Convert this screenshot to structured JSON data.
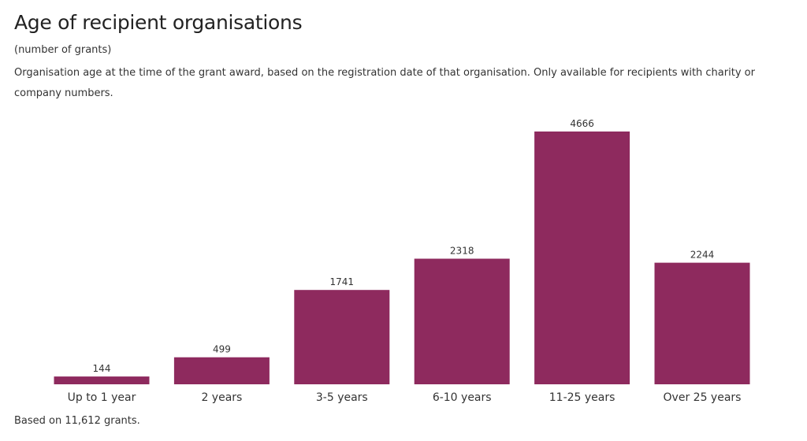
{
  "header": {
    "title": "Age of recipient organisations",
    "subtitle": "(number of grants)",
    "description": "Organisation age at the time of the grant award, based on the registration date of that organisation. Only available for recipients with charity or company numbers."
  },
  "footer": {
    "note": "Based on 11,612 grants."
  },
  "colors": {
    "bar": "#8e2a5e",
    "text": "#333333",
    "axis": "#333333"
  },
  "chart_data": {
    "type": "bar",
    "categories": [
      "Up to 1 year",
      "2 years",
      "3-5 years",
      "6-10 years",
      "11-25 years",
      "Over 25 years"
    ],
    "values": [
      144,
      499,
      1741,
      2318,
      4666,
      2244
    ],
    "title": "Age of recipient organisations",
    "xlabel": "",
    "ylabel": "",
    "grid": false,
    "data_labels": true
  }
}
